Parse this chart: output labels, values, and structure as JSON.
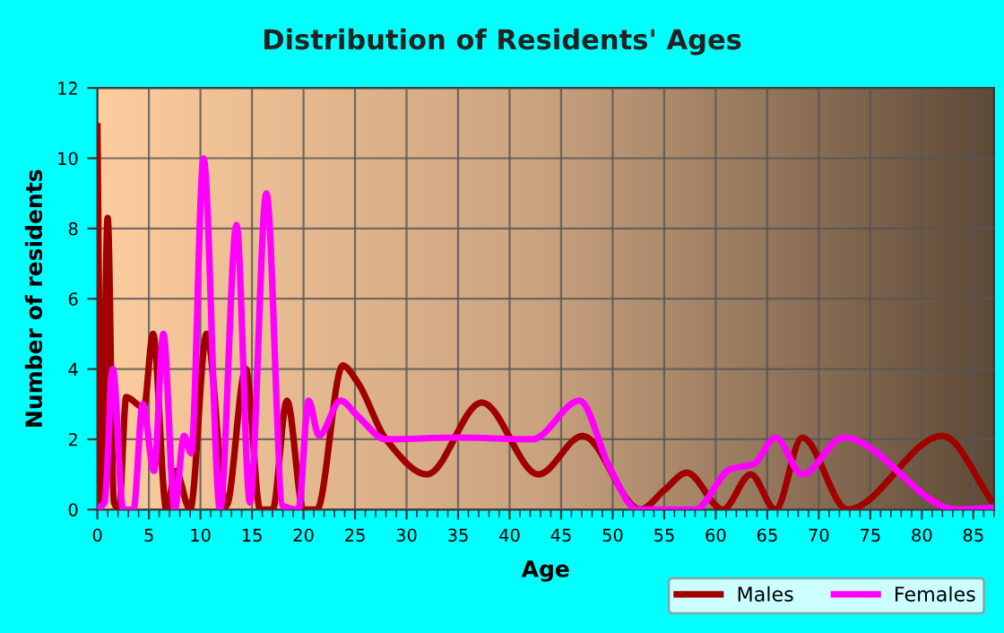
{
  "chart_data": {
    "type": "line",
    "title": "Distribution of Residents' Ages",
    "xlabel": "Age",
    "ylabel": "Number of residents",
    "xlim": [
      0,
      87
    ],
    "ylim": [
      0,
      12
    ],
    "xticks": [
      0,
      5,
      10,
      15,
      20,
      25,
      30,
      35,
      40,
      45,
      50,
      55,
      60,
      65,
      70,
      75,
      80,
      85
    ],
    "yticks": [
      0,
      2,
      4,
      6,
      8,
      10,
      12
    ],
    "grid": true,
    "legend": "bottom right",
    "marker": "none",
    "line_style": "solid",
    "series": [
      {
        "name": "Males",
        "color": "#a00000",
        "x": [
          0,
          0.4,
          1,
          1.6,
          2.1,
          2.8,
          4.5,
          5.4,
          6.7,
          7.6,
          9,
          10.6,
          12.5,
          14.4,
          15.8,
          17,
          18.4,
          20,
          21.3,
          23.8,
          25.3,
          28,
          32,
          37.3,
          42.8,
          47.1,
          52.7,
          55,
          57.2,
          60.7,
          63.4,
          65.8,
          68.4,
          72.8,
          82,
          86.9
        ],
        "values": [
          11,
          0.2,
          8.3,
          0.2,
          0,
          3.2,
          2.9,
          5,
          0,
          1.1,
          0,
          5,
          0.1,
          4,
          0,
          0,
          3.1,
          0,
          0,
          4.1,
          3.6,
          2,
          1,
          3.05,
          1,
          2.1,
          0,
          0.55,
          1.05,
          0,
          1,
          0,
          2.05,
          0,
          2.1,
          0.2
        ]
      },
      {
        "name": "Females",
        "color": "#ff00ff",
        "x": [
          0,
          0.7,
          1.5,
          2.5,
          3.5,
          4.4,
          5.5,
          6.4,
          7.5,
          8.4,
          9.1,
          10.3,
          11.9,
          13.5,
          14.8,
          16.4,
          18,
          19.5,
          20.5,
          21.5,
          23.6,
          25.3,
          28,
          35,
          42.2,
          46.8,
          49.7,
          52.4,
          58,
          61.4,
          63.7,
          65.8,
          68.4,
          72.4,
          83.4,
          87
        ],
        "values": [
          0,
          0.2,
          4,
          0,
          0,
          3,
          1.1,
          5,
          0,
          2.1,
          1.6,
          10,
          0,
          8.1,
          0.2,
          9,
          0.1,
          0,
          3.1,
          2.1,
          3.1,
          2.65,
          2,
          2.05,
          2,
          3.1,
          1.2,
          0,
          0,
          1.15,
          1.3,
          2.05,
          1,
          2.05,
          0,
          0.05
        ]
      }
    ]
  }
}
